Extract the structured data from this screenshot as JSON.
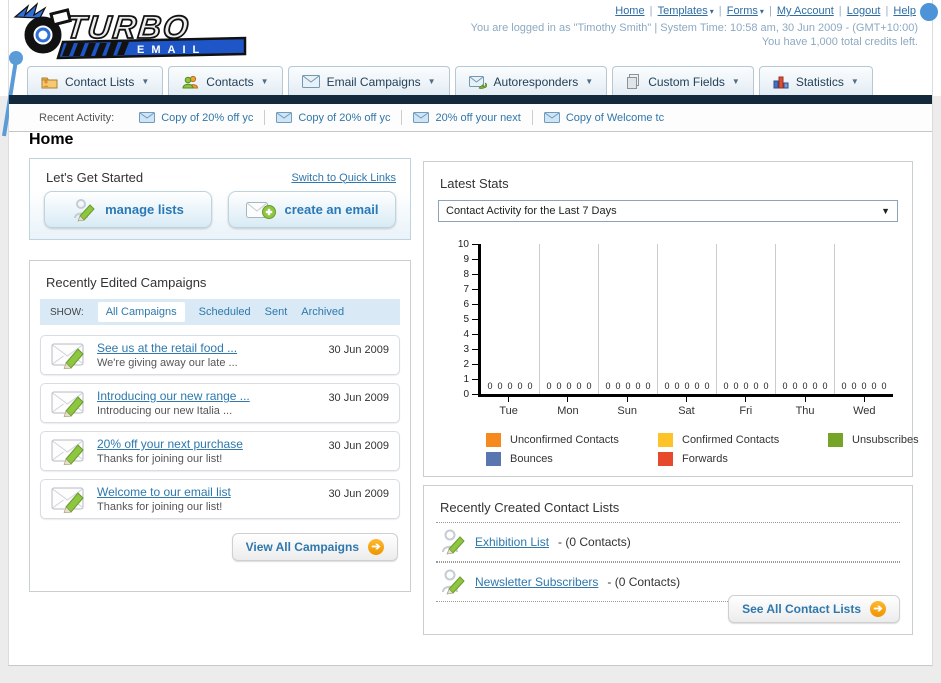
{
  "logo": {
    "title": "TURBO",
    "subtitle": "EMAIL"
  },
  "header": {
    "links": [
      {
        "label": "Home",
        "dropdown": false
      },
      {
        "label": "Templates",
        "dropdown": true
      },
      {
        "label": "Forms",
        "dropdown": true
      },
      {
        "label": "My Account",
        "dropdown": false
      },
      {
        "label": "Logout",
        "dropdown": false
      },
      {
        "label": "Help",
        "dropdown": false
      }
    ],
    "login_text": "You are logged in as \"Timothy Smith\" | System Time: 10:58 am, 30 Jun 2009 - (GMT+10:00)",
    "credits_text": "You have 1,000 total credits left."
  },
  "nav": {
    "tabs": [
      {
        "label": "Contact Lists",
        "icon": "folder-contacts-icon"
      },
      {
        "label": "Contacts",
        "icon": "contacts-icon"
      },
      {
        "label": "Email Campaigns",
        "icon": "email-icon"
      },
      {
        "label": "Autoresponders",
        "icon": "autoresponder-icon"
      },
      {
        "label": "Custom Fields",
        "icon": "custom-fields-icon"
      },
      {
        "label": "Statistics",
        "icon": "statistics-icon"
      }
    ]
  },
  "recent_activity": {
    "label": "Recent Activity:",
    "items": [
      "Copy of 20% off yc",
      "Copy of 20% off yc",
      "20% off your next ",
      "Copy of Welcome tc"
    ]
  },
  "page_title": "Home",
  "get_started": {
    "title": "Let's Get Started",
    "switch_link": "Switch to Quick Links",
    "buttons": [
      {
        "label": "manage lists",
        "icon": "manage-lists-icon"
      },
      {
        "label": "create an email",
        "icon": "create-email-icon"
      }
    ]
  },
  "campaigns": {
    "title": "Recently Edited Campaigns",
    "show_label": "SHOW:",
    "filters": [
      {
        "label": "All Campaigns",
        "active": true
      },
      {
        "label": "Scheduled",
        "active": false
      },
      {
        "label": "Sent",
        "active": false
      },
      {
        "label": "Archived",
        "active": false
      }
    ],
    "items": [
      {
        "title": "See us at the retail food ...",
        "subtitle": "We're giving away our late ...",
        "date": "30 Jun 2009"
      },
      {
        "title": "Introducing our new range ...",
        "subtitle": "Introducing our new Italia ...",
        "date": "30 Jun 2009"
      },
      {
        "title": "20% off your next purchase",
        "subtitle": "Thanks for joining our list!",
        "date": "30 Jun 2009"
      },
      {
        "title": "Welcome to our email list",
        "subtitle": "Thanks for joining our list!",
        "date": "30 Jun 2009"
      }
    ],
    "view_all_label": "View All Campaigns"
  },
  "stats": {
    "title": "Latest Stats",
    "dropdown_value": "Contact Activity for the Last 7 Days"
  },
  "chart_data": {
    "type": "bar",
    "title": "Contact Activity for the Last 7 Days",
    "categories": [
      "Tue",
      "Mon",
      "Sun",
      "Sat",
      "Fri",
      "Thu",
      "Wed"
    ],
    "series": [
      {
        "name": "Unconfirmed Contacts",
        "color": "#f6891e",
        "values": [
          0,
          0,
          0,
          0,
          0,
          0,
          0
        ]
      },
      {
        "name": "Confirmed Contacts",
        "color": "#fdc328",
        "values": [
          0,
          0,
          0,
          0,
          0,
          0,
          0
        ]
      },
      {
        "name": "Unsubscribes",
        "color": "#75a428",
        "values": [
          0,
          0,
          0,
          0,
          0,
          0,
          0
        ]
      },
      {
        "name": "Bounces",
        "color": "#5a76b0",
        "values": [
          0,
          0,
          0,
          0,
          0,
          0,
          0
        ]
      },
      {
        "name": "Forwards",
        "color": "#e7492c",
        "values": [
          0,
          0,
          0,
          0,
          0,
          0,
          0
        ]
      }
    ],
    "ylim": [
      0,
      10
    ],
    "ytick_step": 1,
    "grid": "vertical-day-separators",
    "legend_position": "bottom",
    "value_labels_shown": true
  },
  "contact_lists": {
    "title": "Recently Created Contact Lists",
    "items": [
      {
        "name": "Exhibition List",
        "count_text": "- (0 Contacts)"
      },
      {
        "name": "Newsletter Subscribers",
        "count_text": "- (0 Contacts)"
      }
    ],
    "see_all_label": "See All Contact Lists"
  }
}
